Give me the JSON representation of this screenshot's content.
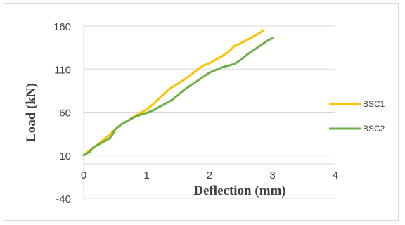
{
  "chart_data": {
    "type": "line",
    "title": "",
    "xlabel": "Deflection (mm)",
    "ylabel": "Load (kN)",
    "xlim": [
      0,
      4
    ],
    "ylim": [
      -40,
      160
    ],
    "x_ticks": [
      "0",
      "1",
      "2",
      "3",
      "4"
    ],
    "y_ticks": [
      "-40",
      "10",
      "60",
      "110",
      "160"
    ],
    "grid": "horizontal",
    "legend_position": "right",
    "series": [
      {
        "name": "BSC1",
        "color": "#FFC000",
        "points": [
          [
            0,
            10
          ],
          [
            0.1,
            16
          ],
          [
            0.2,
            21
          ],
          [
            0.3,
            27
          ],
          [
            0.4,
            33
          ],
          [
            0.5,
            40
          ],
          [
            0.6,
            46
          ],
          [
            0.7,
            50
          ],
          [
            0.8,
            55
          ],
          [
            0.9,
            59
          ],
          [
            1.0,
            63
          ],
          [
            1.1,
            69
          ],
          [
            1.2,
            76
          ],
          [
            1.3,
            83
          ],
          [
            1.4,
            89
          ],
          [
            1.5,
            93
          ],
          [
            1.6,
            98
          ],
          [
            1.7,
            103
          ],
          [
            1.8,
            109
          ],
          [
            1.9,
            114
          ],
          [
            2.0,
            117
          ],
          [
            2.1,
            121
          ],
          [
            2.2,
            125
          ],
          [
            2.3,
            130
          ],
          [
            2.4,
            137
          ],
          [
            2.5,
            140
          ],
          [
            2.6,
            144
          ],
          [
            2.7,
            148
          ],
          [
            2.8,
            152
          ],
          [
            2.85,
            155
          ]
        ]
      },
      {
        "name": "BSC2",
        "color": "#70AD47",
        "points": [
          [
            0,
            10
          ],
          [
            0.1,
            14
          ],
          [
            0.15,
            19
          ],
          [
            0.2,
            21
          ],
          [
            0.3,
            25
          ],
          [
            0.4,
            29
          ],
          [
            0.45,
            33
          ],
          [
            0.5,
            40
          ],
          [
            0.6,
            46
          ],
          [
            0.7,
            50
          ],
          [
            0.8,
            54
          ],
          [
            0.9,
            57
          ],
          [
            1.0,
            59
          ],
          [
            1.1,
            62
          ],
          [
            1.2,
            66
          ],
          [
            1.3,
            70
          ],
          [
            1.4,
            74
          ],
          [
            1.5,
            80
          ],
          [
            1.6,
            86
          ],
          [
            1.7,
            91
          ],
          [
            1.8,
            96
          ],
          [
            1.9,
            101
          ],
          [
            2.0,
            106
          ],
          [
            2.1,
            109
          ],
          [
            2.2,
            112
          ],
          [
            2.3,
            114
          ],
          [
            2.4,
            116
          ],
          [
            2.5,
            121
          ],
          [
            2.6,
            127
          ],
          [
            2.7,
            132
          ],
          [
            2.8,
            137
          ],
          [
            2.9,
            142
          ],
          [
            3.0,
            146
          ]
        ]
      }
    ]
  }
}
